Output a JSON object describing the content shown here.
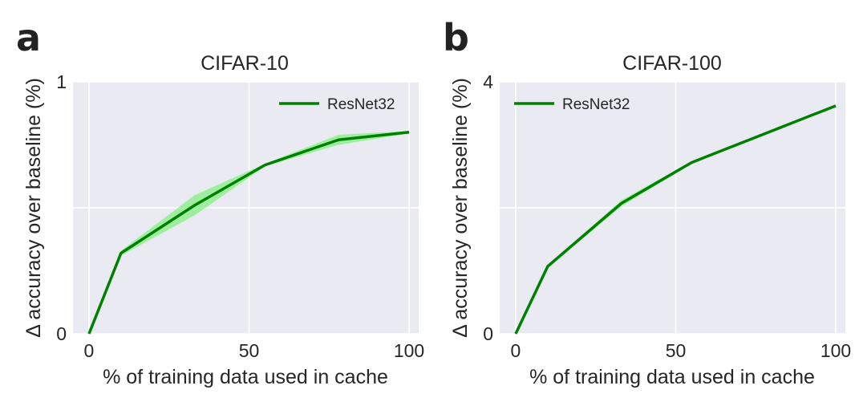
{
  "colors": {
    "plot_background": "#eaeaf2",
    "line": "#008000",
    "band": "#90ee90",
    "grid": "#ffffff"
  },
  "chart_data": [
    {
      "panel_label": "a",
      "type": "line",
      "title": "CIFAR-10",
      "xlabel": "% of training data used in cache",
      "ylabel": "Δ accuracy over baseline (%)",
      "xlim": [
        -5,
        103
      ],
      "ylim": [
        0,
        1
      ],
      "xticks": [
        0,
        50,
        100
      ],
      "yticks": [
        0,
        1
      ],
      "grid": true,
      "legend_position": "top-right",
      "series": [
        {
          "name": "ResNet32",
          "x": [
            0,
            10,
            33,
            55,
            78,
            100
          ],
          "y": [
            0.0,
            0.32,
            0.51,
            0.67,
            0.77,
            0.8
          ],
          "y_lower": [
            0.0,
            0.31,
            0.47,
            0.665,
            0.75,
            0.795
          ],
          "y_upper": [
            0.0,
            0.33,
            0.55,
            0.675,
            0.79,
            0.805
          ]
        }
      ]
    },
    {
      "panel_label": "b",
      "type": "line",
      "title": "CIFAR-100",
      "xlabel": "% of training data used in cache",
      "ylabel": "Δ accuracy over baseline (%)",
      "xlim": [
        -5,
        103
      ],
      "ylim": [
        0,
        4
      ],
      "xticks": [
        0,
        50,
        100
      ],
      "yticks": [
        0,
        4
      ],
      "grid": true,
      "legend_position": "top-left",
      "series": [
        {
          "name": "ResNet32",
          "x": [
            0,
            10,
            33,
            55,
            78,
            100
          ],
          "y": [
            0.0,
            1.07,
            2.07,
            2.72,
            3.18,
            3.62
          ],
          "y_lower": [
            0.0,
            1.05,
            2.02,
            2.7,
            3.16,
            3.61
          ],
          "y_upper": [
            0.0,
            1.09,
            2.12,
            2.74,
            3.2,
            3.63
          ]
        }
      ]
    }
  ]
}
